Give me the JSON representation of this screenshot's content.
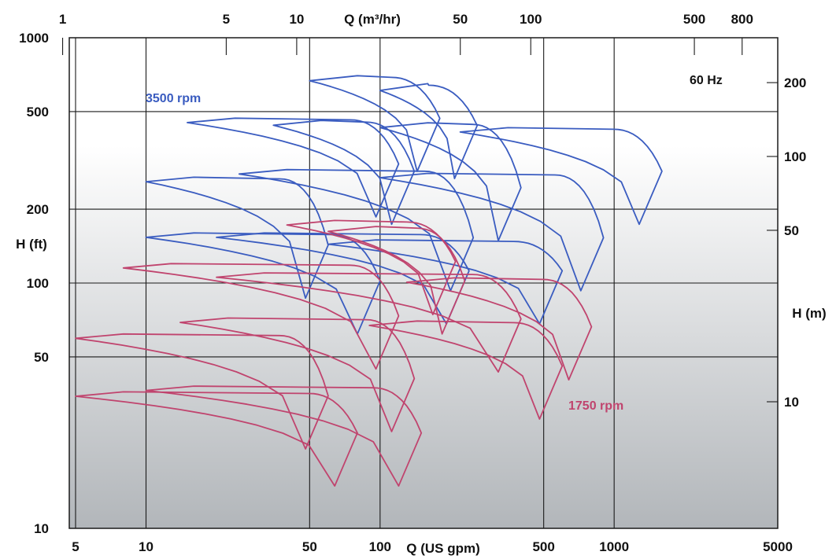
{
  "chart_data": {
    "type": "line",
    "title": "",
    "x_bottom": {
      "label": "Q (US gpm)",
      "scale": "log",
      "range": [
        4.7,
        5000
      ],
      "ticks": [
        "5",
        "10",
        "50",
        "100",
        "500",
        "1000",
        "5000"
      ]
    },
    "x_top": {
      "label": "Q (m³/hr)",
      "scale": "log",
      "ticks": [
        "1",
        "5",
        "10",
        "50",
        "100",
        "500",
        "800"
      ]
    },
    "y_left": {
      "label": "H (ft)",
      "scale": "log",
      "range": [
        10,
        1000
      ],
      "ticks": [
        "10",
        "50",
        "100",
        "200",
        "500",
        "1000"
      ]
    },
    "y_right": {
      "label": "H (m)",
      "scale": "log",
      "ticks": [
        "10",
        "50",
        "100",
        "200"
      ]
    },
    "grid": true,
    "annotations": {
      "speed_high": "3500 rpm",
      "speed_low": "1750 rpm",
      "frequency": "60 Hz"
    },
    "colors": {
      "speed_high": "#3a5cc0",
      "speed_low": "#c0446e",
      "grid": "#1a1a1a",
      "bg_top": "#ffffff",
      "bg_bottom": "#b2b6ba"
    },
    "series": [
      {
        "name": "3500 rpm",
        "envelopes": [
          {
            "qmin": 50,
            "qmax": 180,
            "hmax": 700,
            "hmin": 460
          },
          {
            "qmin": 100,
            "qmax": 260,
            "hmax": 650,
            "hmin": 430
          },
          {
            "qmin": 15,
            "qmax": 120,
            "hmax": 470,
            "hmin": 300
          },
          {
            "qmin": 35,
            "qmax": 140,
            "hmax": 460,
            "hmin": 280
          },
          {
            "qmin": 100,
            "qmax": 400,
            "hmax": 450,
            "hmin": 240
          },
          {
            "qmin": 220,
            "qmax": 1600,
            "hmax": 430,
            "hmin": 280
          },
          {
            "qmin": 10,
            "qmax": 60,
            "hmax": 270,
            "hmin": 140
          },
          {
            "qmin": 25,
            "qmax": 250,
            "hmax": 290,
            "hmin": 150
          },
          {
            "qmin": 100,
            "qmax": 900,
            "hmax": 280,
            "hmin": 150
          },
          {
            "qmin": 10,
            "qmax": 100,
            "hmax": 160,
            "hmin": 100
          },
          {
            "qmin": 20,
            "qmax": 240,
            "hmax": 160,
            "hmin": 110
          },
          {
            "qmin": 60,
            "qmax": 600,
            "hmax": 150,
            "hmin": 110
          }
        ]
      },
      {
        "name": "1750 rpm",
        "envelopes": [
          {
            "qmin": 40,
            "qmax": 210,
            "hmax": 180,
            "hmin": 120
          },
          {
            "qmin": 60,
            "qmax": 230,
            "hmax": 170,
            "hmin": 100
          },
          {
            "qmin": 8,
            "qmax": 120,
            "hmax": 120,
            "hmin": 72
          },
          {
            "qmin": 20,
            "qmax": 400,
            "hmax": 110,
            "hmin": 70
          },
          {
            "qmin": 130,
            "qmax": 800,
            "hmax": 105,
            "hmin": 65
          },
          {
            "qmin": 5,
            "qmax": 60,
            "hmax": 62,
            "hmin": 34
          },
          {
            "qmin": 14,
            "qmax": 140,
            "hmax": 72,
            "hmin": 40
          },
          {
            "qmin": 90,
            "qmax": 600,
            "hmax": 70,
            "hmin": 45
          },
          {
            "qmin": 5,
            "qmax": 80,
            "hmax": 36,
            "hmin": 24
          },
          {
            "qmin": 10,
            "qmax": 150,
            "hmax": 38,
            "hmin": 24
          }
        ]
      }
    ]
  }
}
